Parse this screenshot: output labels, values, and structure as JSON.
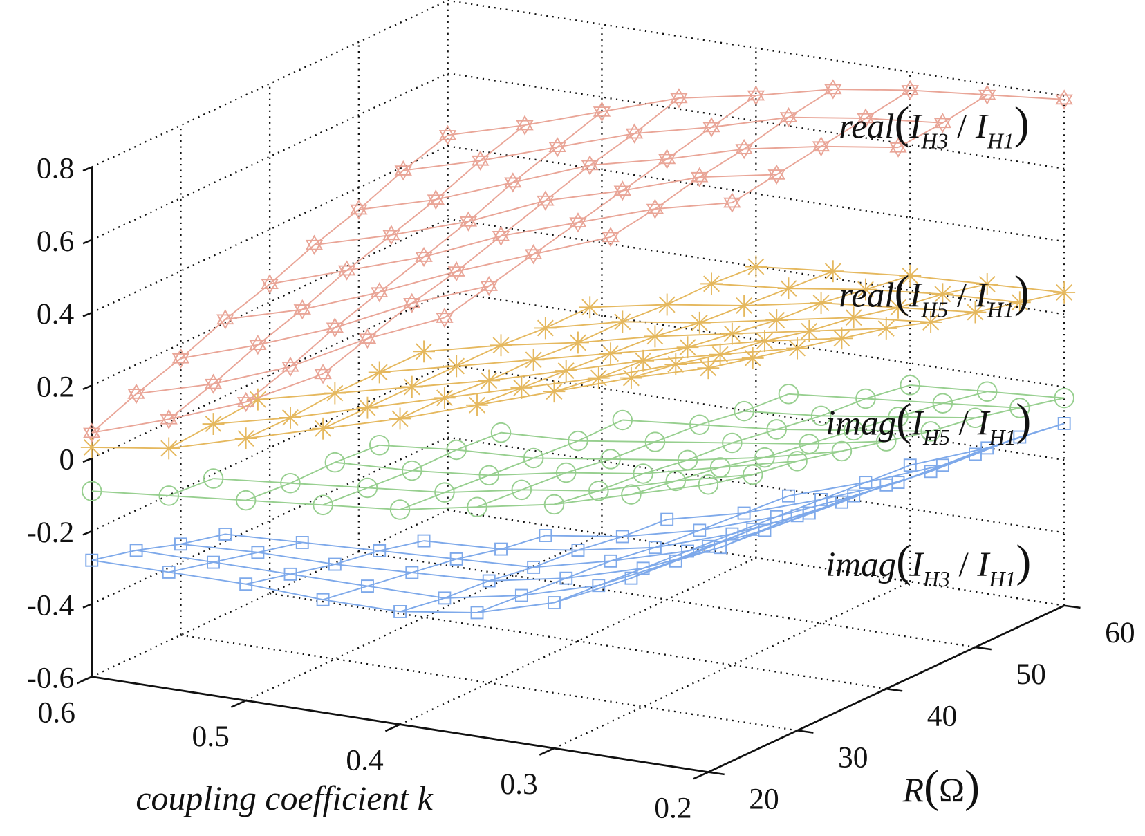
{
  "chart_data": {
    "type": "surface",
    "title": "",
    "x_axis": {
      "label": "coupling coefficient k",
      "values": [
        0.6,
        0.55,
        0.5,
        0.45,
        0.4,
        0.35,
        0.3,
        0.25,
        0.2
      ],
      "tick_values": [
        0.6,
        0.5,
        0.4,
        0.3,
        0.2
      ],
      "tick_labels": [
        "0.6",
        "0.5",
        "0.4",
        "0.3",
        "0.2"
      ],
      "range": [
        0.2,
        0.6
      ]
    },
    "y_axis": {
      "label_var": "R",
      "label_open": "(",
      "label_unit": "Ω",
      "label_close": ")",
      "values": [
        20,
        25,
        30,
        35,
        40,
        45,
        50,
        55,
        60
      ],
      "tick_values": [
        20,
        30,
        40,
        50,
        60
      ],
      "tick_labels": [
        "20",
        "30",
        "40",
        "50",
        "60"
      ],
      "range": [
        20,
        60
      ]
    },
    "z_axis": {
      "label": "",
      "tick_values": [
        0.8,
        0.6,
        0.4,
        0.2,
        0,
        -0.2,
        -0.4,
        -0.6
      ],
      "tick_labels": [
        "0.8",
        "0.6",
        "0.4",
        "0.2",
        "0",
        "-0.2",
        "-0.4",
        "-0.6"
      ],
      "range": [
        -0.6,
        0.8
      ]
    },
    "grid": true,
    "series": [
      {
        "name": "imag(I_H3 / I_H1)",
        "marker": "square",
        "color": "#7ea9ea",
        "label": {
          "func": "imag",
          "open": "(",
          "num": "I",
          "num_sub": "H3",
          "sep": " / ",
          "den": "I",
          "den_sub": "H1",
          "close": ")"
        },
        "z_by_R": [
          [
            -0.28,
            -0.28,
            -0.28,
            -0.29,
            -0.29,
            -0.26,
            -0.2,
            -0.1,
            0.02
          ],
          [
            -0.31,
            -0.31,
            -0.31,
            -0.31,
            -0.31,
            -0.27,
            -0.21,
            -0.11,
            0.01
          ],
          [
            -0.35,
            -0.34,
            -0.34,
            -0.33,
            -0.32,
            -0.28,
            -0.22,
            -0.13,
            -0.01
          ],
          [
            -0.38,
            -0.37,
            -0.36,
            -0.35,
            -0.34,
            -0.29,
            -0.23,
            -0.14,
            -0.03
          ],
          [
            null,
            null,
            -0.39,
            -0.38,
            -0.35,
            -0.31,
            -0.24,
            -0.15,
            -0.04
          ],
          [
            null,
            null,
            null,
            -0.4,
            -0.37,
            -0.32,
            -0.25,
            -0.16,
            -0.06
          ],
          [
            null,
            null,
            null,
            null,
            -0.38,
            -0.33,
            -0.26,
            -0.18,
            -0.07
          ],
          [
            null,
            null,
            null,
            null,
            null,
            -0.34,
            -0.27,
            -0.19,
            -0.08
          ],
          [
            null,
            null,
            null,
            null,
            null,
            null,
            -0.28,
            -0.2,
            -0.1
          ]
        ]
      },
      {
        "name": "imag(I_H5 / I_H1)",
        "marker": "circle",
        "color": "#97cf8f",
        "label": {
          "func": "imag",
          "open": "(",
          "num": "I",
          "num_sub": "H5",
          "sep": " / ",
          "den": "I",
          "den_sub": "H1",
          "close": ")"
        },
        "z_by_R": [
          [
            -0.09,
            -0.07,
            -0.05,
            -0.03,
            -0.01,
            0.03,
            0.07,
            0.13,
            0.19
          ],
          [
            null,
            -0.08,
            -0.06,
            -0.04,
            -0.02,
            0.02,
            0.05,
            0.11,
            0.16
          ],
          [
            null,
            null,
            -0.06,
            -0.05,
            -0.03,
            0.01,
            0.04,
            0.09,
            0.14
          ],
          [
            null,
            null,
            -0.07,
            -0.05,
            -0.04,
            -0.01,
            0.02,
            0.06,
            0.11
          ],
          [
            null,
            null,
            null,
            -0.06,
            -0.05,
            -0.02,
            0.01,
            0.04,
            0.08
          ],
          [
            null,
            null,
            null,
            null,
            -0.05,
            -0.03,
            -0.01,
            0.02,
            0.05
          ],
          [
            null,
            null,
            null,
            null,
            null,
            -0.05,
            -0.03,
            0.0,
            0.03
          ],
          [
            null,
            null,
            null,
            null,
            null,
            -0.06,
            -0.04,
            -0.02,
            0.0
          ],
          [
            null,
            null,
            null,
            null,
            null,
            null,
            -0.06,
            -0.045,
            -0.03
          ]
        ]
      },
      {
        "name": "real(I_H5 / I_H1)",
        "marker": "asterisk",
        "color": "#e5b85e",
        "label": {
          "func": "real",
          "open": "(",
          "num": "I",
          "num_sub": "H5",
          "sep": " / ",
          "den": "I",
          "den_sub": "H1",
          "close": ")"
        },
        "z_by_R": [
          [
            0.03,
            0.06,
            0.12,
            0.18,
            0.24,
            0.31,
            0.38,
            0.45,
            0.51
          ],
          [
            null,
            0.07,
            0.12,
            0.18,
            0.24,
            0.3,
            0.36,
            0.43,
            0.48
          ],
          [
            null,
            0.08,
            0.13,
            0.18,
            0.23,
            0.29,
            0.35,
            0.4,
            0.45
          ],
          [
            null,
            null,
            0.13,
            0.18,
            0.23,
            0.28,
            0.33,
            0.38,
            0.42
          ],
          [
            null,
            null,
            0.13,
            0.18,
            0.22,
            0.27,
            0.31,
            0.35,
            0.39
          ],
          [
            null,
            null,
            null,
            0.17,
            0.22,
            0.25,
            0.29,
            0.33,
            0.35
          ],
          [
            null,
            null,
            null,
            0.17,
            0.21,
            0.24,
            0.28,
            0.3,
            0.32
          ],
          [
            null,
            null,
            null,
            null,
            0.21,
            0.23,
            0.26,
            0.28,
            0.29
          ],
          [
            null,
            null,
            null,
            null,
            0.2,
            0.22,
            0.24,
            0.25,
            0.26
          ]
        ]
      },
      {
        "name": "real(I_H3 / I_H1)",
        "marker": "hexagram",
        "color": "#e9a597",
        "label": {
          "func": "real",
          "open": "(",
          "num": "I",
          "num_sub": "H3",
          "sep": " / ",
          "den": "I",
          "den_sub": "H1",
          "close": ")"
        },
        "z_by_R": [
          [
            0.07,
            0.14,
            0.22,
            0.33,
            null,
            null,
            null,
            null,
            null
          ],
          [
            0.12,
            0.18,
            0.26,
            0.37,
            0.46,
            null,
            null,
            null,
            null
          ],
          [
            0.16,
            0.23,
            0.31,
            0.41,
            0.49,
            null,
            null,
            null,
            null
          ],
          [
            0.21,
            0.27,
            0.35,
            0.44,
            0.52,
            0.6,
            null,
            null,
            null
          ],
          [
            0.25,
            0.32,
            0.39,
            0.48,
            0.55,
            0.62,
            0.67,
            null,
            null
          ],
          [
            0.3,
            0.36,
            0.43,
            0.52,
            0.58,
            0.65,
            0.69,
            null,
            null
          ],
          [
            0.34,
            0.4,
            0.48,
            0.56,
            0.61,
            0.67,
            0.71,
            0.74,
            null
          ],
          [
            0.39,
            0.45,
            0.52,
            0.59,
            0.64,
            0.7,
            0.73,
            0.75,
            null
          ],
          [
            0.43,
            0.49,
            0.56,
            0.63,
            0.67,
            0.72,
            0.75,
            0.77,
            0.79
          ]
        ]
      }
    ]
  }
}
